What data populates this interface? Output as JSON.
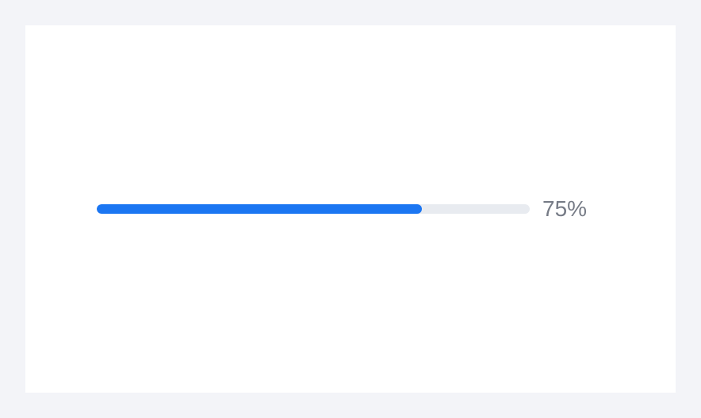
{
  "progress": {
    "value": 0.75,
    "label": "75%",
    "colors": {
      "fill": "#1b76f2",
      "track": "#e8ebf0",
      "label": "#767b86"
    }
  }
}
